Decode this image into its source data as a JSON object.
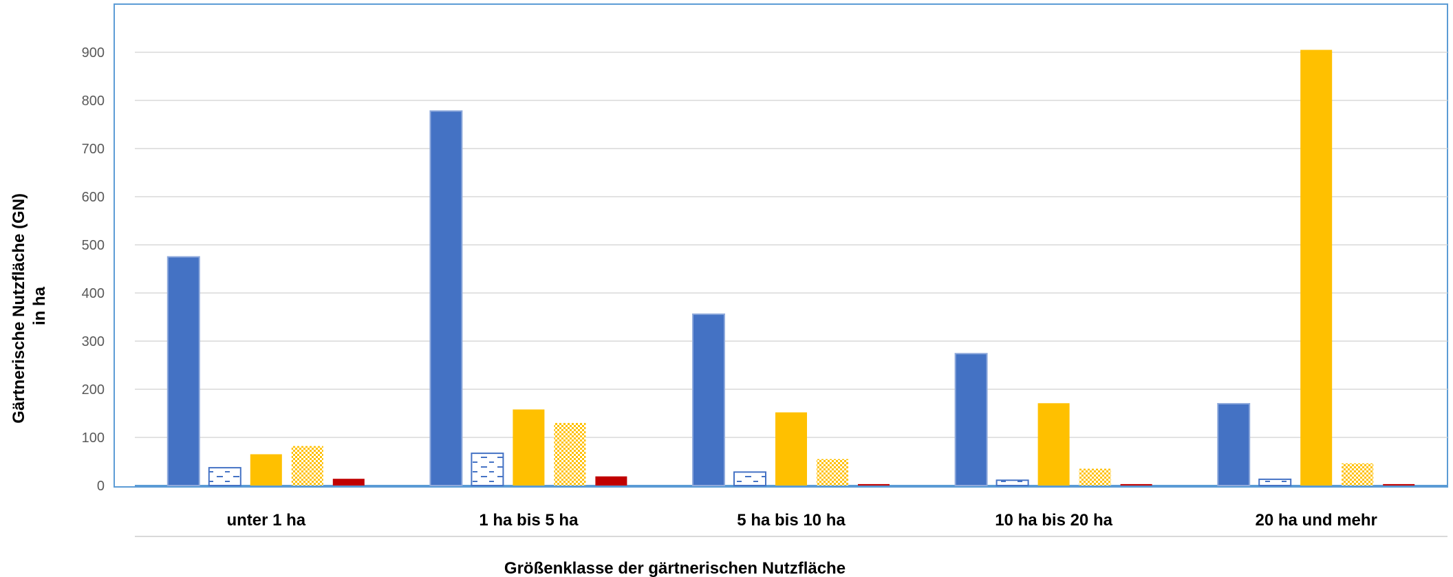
{
  "chart_data": {
    "type": "bar",
    "title": "",
    "xlabel": "Größenklasse der gärtnerischen Nutzfläche",
    "ylabel_lines": [
      "Gärtnerische Nutzfläche (GN)",
      "in ha"
    ],
    "ylim": [
      0,
      1000
    ],
    "yticks": [
      0,
      100,
      200,
      300,
      400,
      500,
      600,
      700,
      800,
      900
    ],
    "grid": true,
    "legend": "none",
    "categories": [
      "unter 1 ha",
      "1 ha bis 5 ha",
      "5 ha bis  10 ha",
      "10 ha bis 20 ha",
      "20 ha und mehr"
    ],
    "series": [
      {
        "color": "#4472c4",
        "pattern": "solid",
        "values": [
          475,
          778,
          356,
          274,
          170
        ]
      },
      {
        "color": "#4472c4",
        "pattern": "dashed-hatch",
        "values": [
          37,
          67,
          28,
          11,
          13
        ]
      },
      {
        "color": "#ffc000",
        "pattern": "solid",
        "values": [
          65,
          158,
          152,
          171,
          905
        ]
      },
      {
        "color": "#ffc000",
        "pattern": "checker",
        "values": [
          82,
          130,
          55,
          35,
          46
        ]
      },
      {
        "color": "#c00000",
        "pattern": "solid",
        "values": [
          14,
          19,
          3,
          3,
          3
        ]
      }
    ]
  }
}
